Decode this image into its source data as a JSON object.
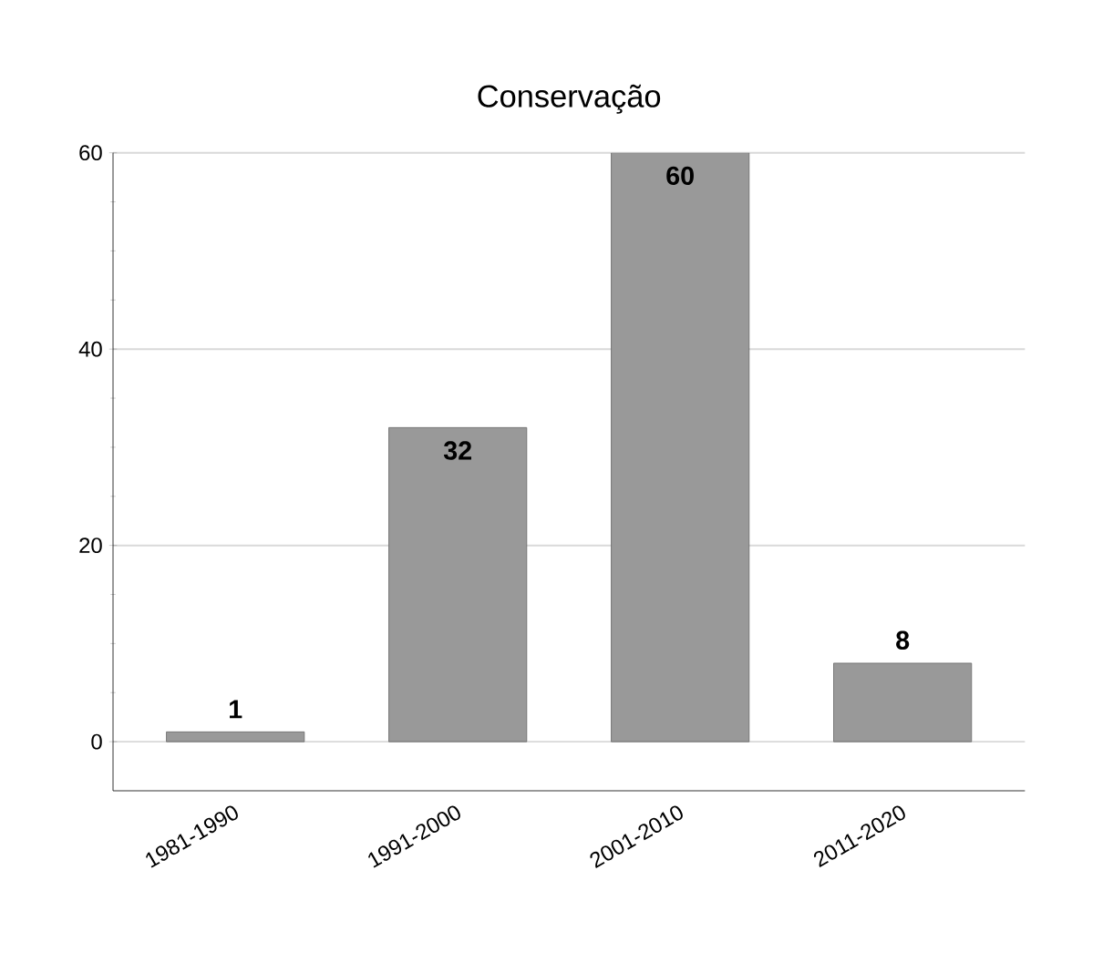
{
  "chart_data": {
    "type": "bar",
    "title": "Conservação",
    "categories": [
      "1981-1990",
      "1991-2000",
      "2001-2010",
      "2011-2020"
    ],
    "values": [
      1,
      32,
      60,
      8
    ],
    "color": "#999999",
    "ylim": [
      -5,
      60
    ],
    "yticks": [
      0,
      20,
      40,
      60
    ],
    "grid": "y",
    "data_labels": true
  }
}
